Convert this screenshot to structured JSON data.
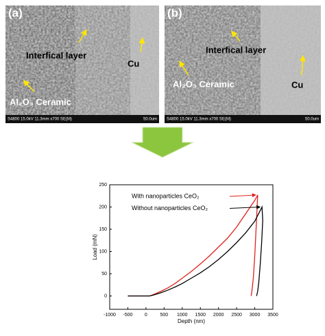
{
  "panels": [
    {
      "label": "(a)",
      "texts": [
        "Interfical layer",
        "Cu",
        "Al₂O₃ Ceramic"
      ],
      "info": "S4800 15.0kV 11.3mm x700 SE(M)",
      "scale": "50.0um"
    },
    {
      "label": "(b)",
      "texts": [
        "Interfical layer",
        "Al₂O₃ Ceramic",
        "Cu"
      ],
      "info": "S4800 15.0kV 11.3mm x700 SE(M)",
      "scale": "50.0um"
    }
  ],
  "chart_data": {
    "type": "line",
    "x_label": "Depth (nm)",
    "y_label": "Load (mN)",
    "xlim": [
      -1000,
      3500
    ],
    "xticks": [
      -1000,
      -500,
      0,
      500,
      1000,
      1500,
      2000,
      2500,
      3000,
      3500
    ],
    "ylim": [
      -30,
      250
    ],
    "yticks": [
      0,
      50,
      100,
      150,
      200,
      250
    ],
    "series": [
      {
        "name": "With nanoparticles CeO₂",
        "color": "#e0201b",
        "x": [
          -500,
          -300,
          0,
          100,
          200,
          400,
          600,
          800,
          1000,
          1250,
          1500,
          1750,
          2000,
          2250,
          2500,
          2750,
          3000,
          3080,
          3060,
          3030,
          3000,
          2960,
          2920,
          2900
        ],
        "values": [
          0,
          0,
          0,
          0,
          3,
          10,
          18,
          28,
          40,
          55,
          72,
          90,
          110,
          130,
          155,
          185,
          215,
          227,
          190,
          140,
          90,
          40,
          10,
          0
        ]
      },
      {
        "name": "Without nanoparticles CeO₂",
        "color": "#000000",
        "x": [
          -500,
          0,
          100,
          200,
          400,
          600,
          800,
          1000,
          1250,
          1500,
          1750,
          2000,
          2250,
          2500,
          2750,
          3000,
          3200,
          3220,
          3190,
          3150,
          3110,
          3080,
          3050
        ],
        "values": [
          0,
          0,
          0,
          2,
          7,
          13,
          20,
          28,
          40,
          52,
          66,
          82,
          100,
          120,
          142,
          168,
          200,
          170,
          120,
          70,
          30,
          10,
          0
        ]
      }
    ]
  }
}
